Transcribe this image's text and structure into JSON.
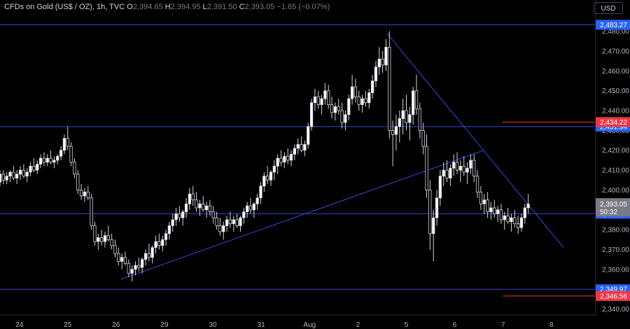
{
  "header": {
    "symbol": "CFDs on Gold (US$ / OZ), 1h, TVC",
    "open_label": "O",
    "open": "2,394.65",
    "high_label": "H",
    "high": "2,394.95",
    "low_label": "L",
    "low": "2,391.50",
    "close_label": "C",
    "close": "2,393.05",
    "change": "−1.65 (−0.07%)"
  },
  "currency_button": "USD",
  "chart_data": {
    "type": "candlestick",
    "title": "CFDs on Gold (US$ / OZ), 1h, TVC",
    "y_ticks": [
      2340,
      2350,
      2360,
      2370,
      2380,
      2390,
      2400,
      2410,
      2420,
      2430,
      2440,
      2450,
      2460,
      2470,
      2480
    ],
    "y_tick_labels": [
      "2,340.00",
      "2,350.00",
      "2,360.00",
      "2,370.00",
      "2,380.00",
      "2,390.00",
      "2,400.00",
      "2,410.00",
      "2,420.00",
      "2,430.00",
      "2,440.00",
      "2,450.00",
      "2,460.00",
      "2,470.00",
      "2,480.00"
    ],
    "ylim": [
      2337,
      2488
    ],
    "x_tick_labels": [
      "24",
      "25",
      "26",
      "29",
      "30",
      "31",
      "Aug",
      "2",
      "5",
      "6",
      "7",
      "8"
    ],
    "x_tick_days": [
      0,
      1,
      2,
      3,
      4,
      5,
      6,
      7,
      8,
      9,
      10,
      11
    ],
    "xlim": [
      -0.4,
      11.9
    ],
    "grid": false,
    "horizontal_levels": [
      {
        "value": 2483.27,
        "label": "2,483.27",
        "color": "#3a47d0"
      },
      {
        "value": 2431.94,
        "label": "2,431.94",
        "color": "#3a47d0"
      },
      {
        "value": 2388.02,
        "label": "2,388.02",
        "color": "#3a47d0"
      },
      {
        "value": 2349.97,
        "label": "2,349.97",
        "color": "#3a47d0"
      }
    ],
    "red_levels": [
      {
        "value": 2434.22,
        "label": "2,434.22",
        "color": "#f23645",
        "x_start": 9.98
      },
      {
        "value": 2346.56,
        "label": "2,346.56",
        "color": "#f23645",
        "x_start": 10.0
      }
    ],
    "trendlines": [
      {
        "points": [
          [
            2.1,
            2355
          ],
          [
            9.6,
            2420
          ]
        ],
        "color": "#3a47d0"
      },
      {
        "points": [
          [
            7.6,
            2479
          ],
          [
            11.25,
            2371
          ]
        ],
        "color": "#3a47d0"
      }
    ],
    "last_price": {
      "value": 2393.05,
      "label": "2,393.05",
      "countdown": "50:32",
      "color": "#787b86"
    },
    "candles": [
      [
        -0.4,
        2404,
        2410,
        2402,
        2408
      ],
      [
        -0.33,
        2408,
        2410,
        2403,
        2405
      ],
      [
        -0.26,
        2405,
        2409,
        2403,
        2407
      ],
      [
        -0.19,
        2407,
        2410,
        2404,
        2409
      ],
      [
        -0.12,
        2409,
        2412,
        2405,
        2406
      ],
      [
        -0.05,
        2406,
        2410,
        2403,
        2408
      ],
      [
        0.02,
        2408,
        2412,
        2405,
        2410
      ],
      [
        0.09,
        2410,
        2413,
        2406,
        2407
      ],
      [
        0.16,
        2407,
        2411,
        2404,
        2409
      ],
      [
        0.23,
        2409,
        2414,
        2407,
        2412
      ],
      [
        0.3,
        2412,
        2416,
        2409,
        2410
      ],
      [
        0.37,
        2410,
        2415,
        2408,
        2413
      ],
      [
        0.44,
        2413,
        2418,
        2411,
        2416
      ],
      [
        0.51,
        2416,
        2419,
        2412,
        2414
      ],
      [
        0.58,
        2414,
        2418,
        2412,
        2416
      ],
      [
        0.65,
        2416,
        2420,
        2413,
        2414
      ],
      [
        0.72,
        2414,
        2417,
        2411,
        2415
      ],
      [
        0.79,
        2415,
        2418,
        2413,
        2417
      ],
      [
        0.86,
        2417,
        2422,
        2415,
        2420
      ],
      [
        0.93,
        2420,
        2428,
        2418,
        2426
      ],
      [
        1.0,
        2426,
        2432,
        2420,
        2422
      ],
      [
        1.07,
        2422,
        2424,
        2412,
        2414
      ],
      [
        1.14,
        2414,
        2416,
        2406,
        2408
      ],
      [
        1.21,
        2408,
        2410,
        2398,
        2400
      ],
      [
        1.28,
        2400,
        2403,
        2395,
        2397
      ],
      [
        1.35,
        2397,
        2401,
        2394,
        2399
      ],
      [
        1.42,
        2399,
        2402,
        2395,
        2396
      ],
      [
        1.49,
        2396,
        2398,
        2380,
        2382
      ],
      [
        1.56,
        2382,
        2384,
        2372,
        2374
      ],
      [
        1.63,
        2374,
        2378,
        2370,
        2376
      ],
      [
        1.7,
        2376,
        2380,
        2372,
        2374
      ],
      [
        1.77,
        2374,
        2379,
        2371,
        2377
      ],
      [
        1.84,
        2377,
        2382,
        2374,
        2375
      ],
      [
        1.91,
        2375,
        2378,
        2370,
        2372
      ],
      [
        1.98,
        2372,
        2375,
        2366,
        2368
      ],
      [
        2.05,
        2368,
        2371,
        2362,
        2364
      ],
      [
        2.12,
        2364,
        2368,
        2360,
        2366
      ],
      [
        2.19,
        2366,
        2369,
        2362,
        2363
      ],
      [
        2.26,
        2363,
        2365,
        2356,
        2358
      ],
      [
        2.33,
        2358,
        2362,
        2354,
        2360
      ],
      [
        2.4,
        2360,
        2364,
        2357,
        2362
      ],
      [
        2.47,
        2362,
        2366,
        2359,
        2361
      ],
      [
        2.54,
        2361,
        2366,
        2358,
        2365
      ],
      [
        2.61,
        2365,
        2370,
        2362,
        2368
      ],
      [
        2.68,
        2368,
        2373,
        2364,
        2366
      ],
      [
        2.75,
        2366,
        2372,
        2363,
        2371
      ],
      [
        2.82,
        2371,
        2377,
        2368,
        2374
      ],
      [
        2.89,
        2374,
        2378,
        2370,
        2372
      ],
      [
        2.96,
        2372,
        2377,
        2369,
        2375
      ],
      [
        3.03,
        2375,
        2380,
        2372,
        2378
      ],
      [
        3.1,
        2378,
        2384,
        2375,
        2382
      ],
      [
        3.17,
        2382,
        2388,
        2379,
        2385
      ],
      [
        3.24,
        2385,
        2391,
        2382,
        2388
      ],
      [
        3.31,
        2388,
        2392,
        2384,
        2386
      ],
      [
        3.38,
        2386,
        2390,
        2382,
        2389
      ],
      [
        3.45,
        2389,
        2396,
        2386,
        2393
      ],
      [
        3.52,
        2393,
        2401,
        2390,
        2398
      ],
      [
        3.59,
        2398,
        2402,
        2392,
        2395
      ],
      [
        3.66,
        2395,
        2399,
        2389,
        2391
      ],
      [
        3.73,
        2391,
        2395,
        2387,
        2393
      ],
      [
        3.8,
        2393,
        2397,
        2389,
        2390
      ],
      [
        3.87,
        2390,
        2394,
        2386,
        2392
      ],
      [
        3.94,
        2392,
        2395,
        2387,
        2389
      ],
      [
        4.01,
        2389,
        2392,
        2383,
        2386
      ],
      [
        4.08,
        2386,
        2389,
        2380,
        2382
      ],
      [
        4.15,
        2382,
        2386,
        2377,
        2379
      ],
      [
        4.22,
        2379,
        2384,
        2375,
        2382
      ],
      [
        4.29,
        2382,
        2387,
        2379,
        2385
      ],
      [
        4.36,
        2385,
        2389,
        2381,
        2383
      ],
      [
        4.43,
        2383,
        2387,
        2379,
        2385
      ],
      [
        4.5,
        2385,
        2388,
        2381,
        2382
      ],
      [
        4.57,
        2382,
        2387,
        2379,
        2386
      ],
      [
        4.64,
        2386,
        2391,
        2383,
        2389
      ],
      [
        4.71,
        2389,
        2394,
        2386,
        2392
      ],
      [
        4.78,
        2392,
        2396,
        2388,
        2390
      ],
      [
        4.85,
        2390,
        2394,
        2386,
        2393
      ],
      [
        4.92,
        2393,
        2398,
        2390,
        2396
      ],
      [
        4.99,
        2396,
        2404,
        2393,
        2402
      ],
      [
        5.06,
        2402,
        2409,
        2399,
        2407
      ],
      [
        5.13,
        2407,
        2412,
        2403,
        2405
      ],
      [
        5.2,
        2405,
        2410,
        2402,
        2409
      ],
      [
        5.27,
        2409,
        2415,
        2405,
        2412
      ],
      [
        5.34,
        2412,
        2418,
        2408,
        2416
      ],
      [
        5.41,
        2416,
        2420,
        2412,
        2414
      ],
      [
        5.48,
        2414,
        2419,
        2411,
        2417
      ],
      [
        5.55,
        2417,
        2421,
        2413,
        2415
      ],
      [
        5.62,
        2415,
        2420,
        2412,
        2418
      ],
      [
        5.69,
        2418,
        2423,
        2415,
        2421
      ],
      [
        5.76,
        2421,
        2426,
        2418,
        2423
      ],
      [
        5.83,
        2423,
        2427,
        2419,
        2420
      ],
      [
        5.9,
        2420,
        2425,
        2417,
        2423
      ],
      [
        5.97,
        2423,
        2434,
        2421,
        2432
      ],
      [
        6.04,
        2432,
        2446,
        2430,
        2444
      ],
      [
        6.11,
        2444,
        2451,
        2440,
        2447
      ],
      [
        6.18,
        2447,
        2450,
        2441,
        2443
      ],
      [
        6.25,
        2443,
        2448,
        2438,
        2446
      ],
      [
        6.32,
        2446,
        2454,
        2443,
        2450
      ],
      [
        6.39,
        2450,
        2453,
        2441,
        2443
      ],
      [
        6.46,
        2443,
        2447,
        2436,
        2439
      ],
      [
        6.53,
        2439,
        2444,
        2435,
        2442
      ],
      [
        6.6,
        2442,
        2446,
        2438,
        2440
      ],
      [
        6.67,
        2440,
        2444,
        2431,
        2434
      ],
      [
        6.74,
        2434,
        2440,
        2430,
        2438
      ],
      [
        6.81,
        2438,
        2448,
        2435,
        2446
      ],
      [
        6.88,
        2446,
        2458,
        2443,
        2452
      ],
      [
        6.95,
        2452,
        2456,
        2444,
        2447
      ],
      [
        7.02,
        2447,
        2450,
        2440,
        2443
      ],
      [
        7.09,
        2443,
        2448,
        2439,
        2446
      ],
      [
        7.16,
        2446,
        2450,
        2442,
        2444
      ],
      [
        7.23,
        2444,
        2451,
        2441,
        2449
      ],
      [
        7.3,
        2449,
        2458,
        2446,
        2455
      ],
      [
        7.37,
        2455,
        2465,
        2452,
        2462
      ],
      [
        7.44,
        2462,
        2472,
        2458,
        2466
      ],
      [
        7.51,
        2466,
        2470,
        2459,
        2463
      ],
      [
        7.58,
        2463,
        2476,
        2460,
        2472
      ],
      [
        7.65,
        2472,
        2480,
        2426,
        2430
      ],
      [
        7.72,
        2430,
        2435,
        2412,
        2428
      ],
      [
        7.79,
        2428,
        2438,
        2420,
        2432
      ],
      [
        7.86,
        2432,
        2440,
        2424,
        2436
      ],
      [
        7.93,
        2436,
        2446,
        2428,
        2440
      ],
      [
        8.0,
        2440,
        2448,
        2430,
        2434
      ],
      [
        8.07,
        2434,
        2442,
        2425,
        2438
      ],
      [
        8.14,
        2438,
        2452,
        2433,
        2450
      ],
      [
        8.21,
        2450,
        2458,
        2438,
        2441
      ],
      [
        8.28,
        2441,
        2444,
        2426,
        2430
      ],
      [
        8.35,
        2430,
        2434,
        2418,
        2422
      ],
      [
        8.42,
        2422,
        2428,
        2396,
        2400
      ],
      [
        8.49,
        2400,
        2405,
        2370,
        2378
      ],
      [
        8.56,
        2378,
        2390,
        2364,
        2386
      ],
      [
        8.63,
        2386,
        2400,
        2382,
        2396
      ],
      [
        8.7,
        2396,
        2410,
        2392,
        2407
      ],
      [
        8.77,
        2407,
        2414,
        2402,
        2410
      ],
      [
        8.84,
        2410,
        2415,
        2404,
        2406
      ],
      [
        8.91,
        2406,
        2413,
        2402,
        2411
      ],
      [
        8.98,
        2411,
        2418,
        2407,
        2414
      ],
      [
        9.05,
        2414,
        2419,
        2408,
        2410
      ],
      [
        9.12,
        2410,
        2415,
        2404,
        2412
      ],
      [
        9.19,
        2412,
        2417,
        2407,
        2409
      ],
      [
        9.26,
        2409,
        2414,
        2403,
        2411
      ],
      [
        9.33,
        2411,
        2418,
        2408,
        2415
      ],
      [
        9.4,
        2415,
        2418,
        2404,
        2407
      ],
      [
        9.47,
        2407,
        2410,
        2396,
        2399
      ],
      [
        9.54,
        2399,
        2402,
        2390,
        2393
      ],
      [
        9.61,
        2393,
        2398,
        2388,
        2395
      ],
      [
        9.68,
        2395,
        2399,
        2386,
        2389
      ],
      [
        9.75,
        2389,
        2394,
        2385,
        2391
      ],
      [
        9.82,
        2391,
        2395,
        2386,
        2388
      ],
      [
        9.89,
        2388,
        2392,
        2384,
        2390
      ],
      [
        9.96,
        2390,
        2393,
        2383,
        2385
      ],
      [
        10.03,
        2385,
        2389,
        2380,
        2387
      ],
      [
        10.1,
        2387,
        2391,
        2383,
        2384
      ],
      [
        10.17,
        2384,
        2388,
        2379,
        2386
      ],
      [
        10.24,
        2386,
        2390,
        2381,
        2383
      ],
      [
        10.31,
        2383,
        2387,
        2378,
        2381
      ],
      [
        10.38,
        2381,
        2388,
        2379,
        2386
      ],
      [
        10.45,
        2386,
        2393,
        2383,
        2391
      ],
      [
        10.52,
        2391,
        2398,
        2388,
        2393
      ]
    ]
  }
}
